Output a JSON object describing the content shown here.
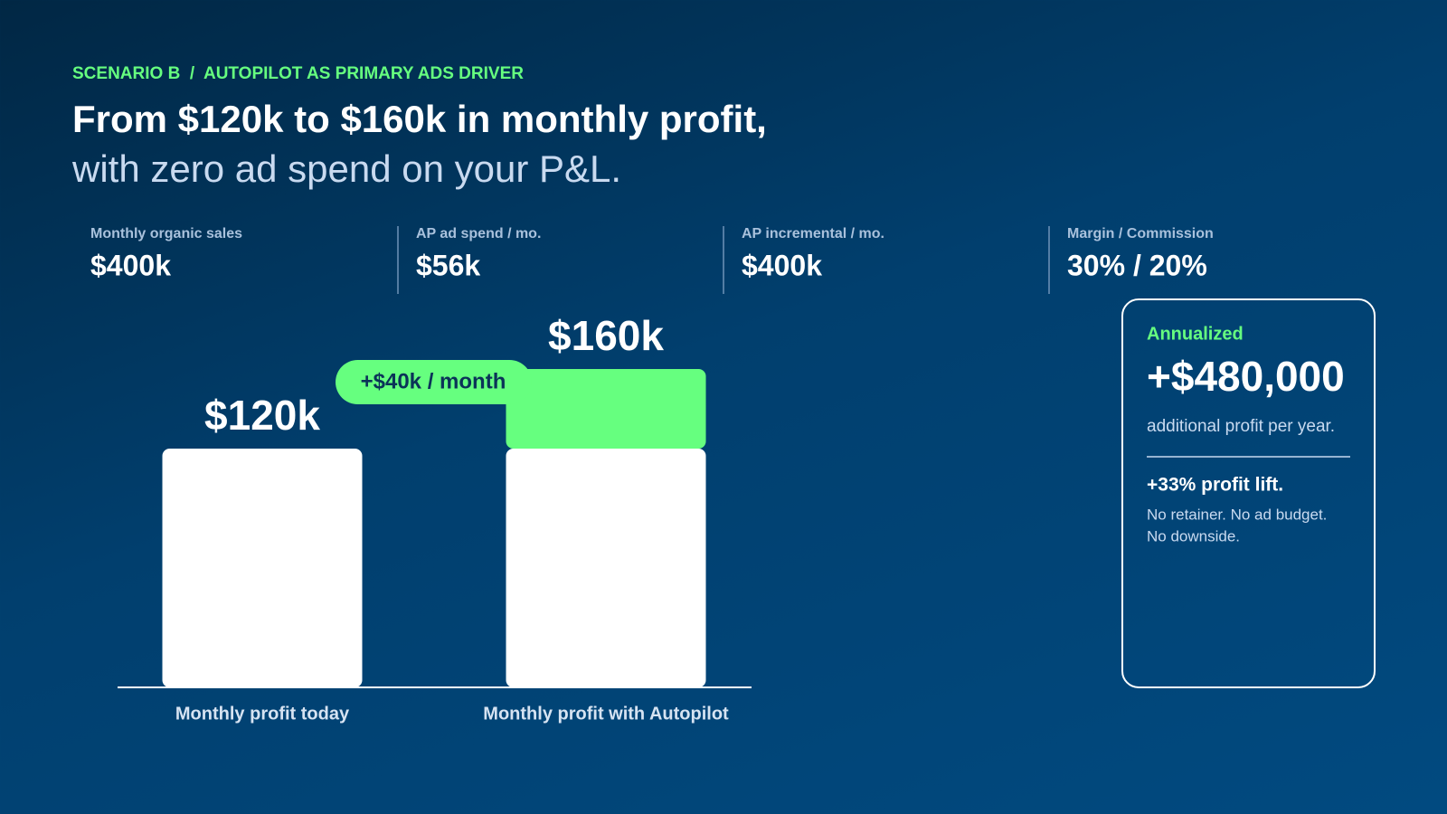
{
  "eyebrow": "SCENARIO B  /  AUTOPILOT AS PRIMARY ADS DRIVER",
  "title": "From $120k to $160k in monthly profit,",
  "subtitle": "with zero ad spend on your P&L.",
  "stats": [
    {
      "label": "Monthly organic sales",
      "value": "$400k"
    },
    {
      "label": "AP ad spend / mo.",
      "value": "$56k"
    },
    {
      "label": "AP incremental / mo.",
      "value": "$400k"
    },
    {
      "label": "Margin / Commission",
      "value": "30% / 20%"
    }
  ],
  "chart_data": {
    "type": "bar",
    "categories": [
      "Monthly profit today",
      "Monthly profit with Autopilot"
    ],
    "series": [
      {
        "color": "#ffffff",
        "values": [
          120,
          120
        ]
      },
      {
        "color": "#66ff7f",
        "values": [
          null,
          40
        ]
      }
    ],
    "totals": [
      120,
      160
    ],
    "total_labels": [
      "$120k",
      "$160k"
    ],
    "annotation": "+$40k / month"
  },
  "card": {
    "eyebrow": "Annualized",
    "value": "+$480,000",
    "caption": "additional profit per year.",
    "lift": "+33% profit lift.",
    "notes": [
      "No retainer. No ad budget.",
      "No downside."
    ]
  }
}
